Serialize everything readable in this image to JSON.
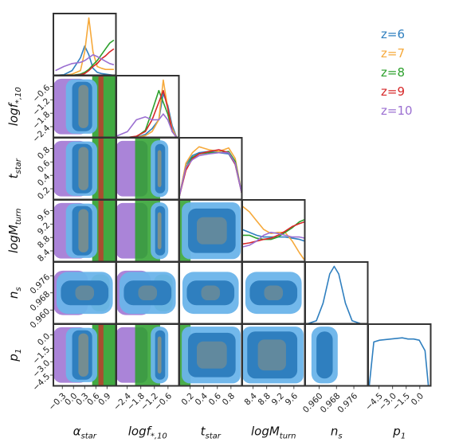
{
  "chart_data": {
    "type": "corner",
    "parameters": [
      {
        "key": "alpha_star",
        "name": "α",
        "sub": "star",
        "ticks": [
          "−0.3",
          "0.0",
          "0.3",
          "0.6",
          "0.9"
        ],
        "range": [
          -0.45,
          1.05
        ]
      },
      {
        "key": "log_fstar10",
        "name": "logf",
        "sub": "*,10",
        "ticks": [
          "−2.4",
          "−1.8",
          "−1.2",
          "−0.6"
        ],
        "range": [
          -2.9,
          -0.1
        ]
      },
      {
        "key": "t_star",
        "name": "t",
        "sub": "star",
        "ticks": [
          "0.2",
          "0.4",
          "0.6",
          "0.8"
        ],
        "range": [
          0.05,
          1.0
        ]
      },
      {
        "key": "log_Mturn",
        "name": "logM",
        "sub": "turn",
        "ticks": [
          "8.4",
          "8.8",
          "9.2",
          "9.6"
        ],
        "range": [
          8.2,
          9.95
        ]
      },
      {
        "key": "n_s",
        "name": "n",
        "sub": "s",
        "ticks": [
          "0.960",
          "0.968",
          "0.976"
        ],
        "range": [
          0.955,
          0.983
        ]
      },
      {
        "key": "p_1",
        "name": "p",
        "sub": "1",
        "ticks": [
          "−4.5",
          "−3.0",
          "−1.5",
          "0.0"
        ],
        "range": [
          -5.0,
          0.5
        ]
      }
    ],
    "series": [
      {
        "name": "z=6",
        "color": "#2f7fbf"
      },
      {
        "name": "z=7",
        "color": "#f6a93b"
      },
      {
        "name": "z=8",
        "color": "#2ca02c"
      },
      {
        "name": "z=9",
        "color": "#d62728"
      },
      {
        "name": "z=10",
        "color": "#9b6fd1"
      }
    ],
    "marginals_1d": {
      "alpha_star": {
        "x": [
          -0.4,
          -0.2,
          0.0,
          0.2,
          0.3,
          0.4,
          0.5,
          0.6,
          0.7,
          0.8,
          0.9,
          1.0
        ],
        "z=6": [
          0,
          0.01,
          0.08,
          0.3,
          0.5,
          0.35,
          0.12,
          0.05,
          0.03,
          0.02,
          0.01,
          0
        ],
        "z=7": [
          0,
          0,
          0.02,
          0.08,
          0.4,
          0.98,
          0.4,
          0.15,
          0.12,
          0.1,
          0.1,
          0.1
        ],
        "z=8": [
          0,
          0,
          0,
          0.02,
          0.05,
          0.1,
          0.18,
          0.25,
          0.35,
          0.45,
          0.55,
          0.6
        ],
        "z=9": [
          0,
          0,
          0,
          0.01,
          0.03,
          0.08,
          0.15,
          0.2,
          0.28,
          0.33,
          0.4,
          0.45
        ],
        "z=10": [
          0.08,
          0.15,
          0.2,
          0.22,
          0.25,
          0.3,
          0.35,
          0.32,
          0.28,
          0.24,
          0.2,
          0.18
        ]
      },
      "log_fstar10": {
        "x": [
          -2.9,
          -2.4,
          -2.0,
          -1.6,
          -1.3,
          -1.0,
          -0.8,
          -0.6,
          -0.4,
          -0.2
        ],
        "z=6": [
          0,
          0,
          0,
          0.05,
          0.15,
          0.3,
          0.75,
          0.55,
          0.2,
          0
        ],
        "z=7": [
          0,
          0,
          0,
          0.03,
          0.1,
          0.3,
          0.98,
          0.5,
          0.15,
          0
        ],
        "z=8": [
          0,
          0,
          0.01,
          0.12,
          0.45,
          0.8,
          0.6,
          0.4,
          0.1,
          0
        ],
        "z=9": [
          0,
          0,
          0.02,
          0.1,
          0.3,
          0.6,
          0.8,
          0.5,
          0.1,
          0
        ],
        "z=10": [
          0.02,
          0.1,
          0.3,
          0.35,
          0.3,
          0.3,
          0.4,
          0.3,
          0.1,
          0
        ]
      },
      "t_star": {
        "x": [
          0.05,
          0.15,
          0.25,
          0.35,
          0.5,
          0.65,
          0.8,
          0.9,
          1.0
        ],
        "z=6": [
          0.05,
          0.6,
          0.75,
          0.8,
          0.82,
          0.8,
          0.78,
          0.6,
          0.1
        ],
        "z=7": [
          0.05,
          0.62,
          0.8,
          0.9,
          0.85,
          0.82,
          0.88,
          0.7,
          0.1
        ],
        "z=8": [
          0.05,
          0.55,
          0.72,
          0.78,
          0.8,
          0.8,
          0.82,
          0.65,
          0.1
        ],
        "z=9": [
          0.05,
          0.5,
          0.7,
          0.78,
          0.82,
          0.85,
          0.8,
          0.6,
          0.1
        ],
        "z=10": [
          0.05,
          0.55,
          0.68,
          0.75,
          0.78,
          0.8,
          0.8,
          0.62,
          0.1
        ]
      },
      "log_Mturn": {
        "x": [
          8.2,
          8.4,
          8.6,
          8.8,
          9.0,
          9.2,
          9.4,
          9.6,
          9.8,
          9.95
        ],
        "z=6": [
          0.55,
          0.5,
          0.45,
          0.42,
          0.42,
          0.42,
          0.42,
          0.4,
          0.38,
          0.35
        ],
        "z=7": [
          0.95,
          0.85,
          0.7,
          0.55,
          0.48,
          0.5,
          0.5,
          0.35,
          0.15,
          0.02
        ],
        "z=8": [
          0.45,
          0.45,
          0.4,
          0.38,
          0.38,
          0.42,
          0.5,
          0.58,
          0.68,
          0.72
        ],
        "z=9": [
          0.3,
          0.32,
          0.35,
          0.38,
          0.4,
          0.45,
          0.52,
          0.6,
          0.65,
          0.68
        ],
        "z=10": [
          0.25,
          0.28,
          0.35,
          0.45,
          0.5,
          0.48,
          0.45,
          0.42,
          0.42,
          0.4
        ]
      },
      "n_s": {
        "x": [
          0.956,
          0.96,
          0.963,
          0.966,
          0.968,
          0.97,
          0.973,
          0.976,
          0.98
        ],
        "z=6": [
          0,
          0.05,
          0.35,
          0.85,
          0.98,
          0.85,
          0.35,
          0.05,
          0
        ]
      },
      "p_1": {
        "x": [
          -4.9,
          -4.5,
          -4.0,
          -3.0,
          -2.0,
          -1.5,
          -1.0,
          -0.5,
          0.0,
          0.3
        ],
        "z=6": [
          0,
          0.75,
          0.78,
          0.8,
          0.82,
          0.8,
          0.8,
          0.78,
          0.6,
          0
        ]
      }
    }
  }
}
